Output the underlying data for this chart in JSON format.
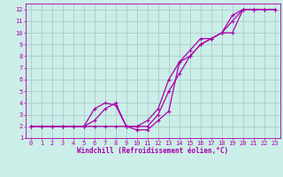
{
  "bg_color": "#cceee8",
  "grid_color": "#aacccc",
  "line_color": "#aa00aa",
  "xlim": [
    -0.5,
    23.5
  ],
  "ylim": [
    1,
    12.5
  ],
  "xticks": [
    0,
    1,
    2,
    3,
    4,
    5,
    6,
    7,
    8,
    9,
    10,
    11,
    12,
    13,
    14,
    15,
    16,
    17,
    18,
    19,
    20,
    21,
    22,
    23
  ],
  "yticks": [
    1,
    2,
    3,
    4,
    5,
    6,
    7,
    8,
    9,
    10,
    11,
    12
  ],
  "xlabel": "Windchill (Refroidissement éolien,°C)",
  "series1_x": [
    0,
    1,
    2,
    3,
    4,
    5,
    6,
    7,
    8,
    9,
    10,
    11,
    12,
    13,
    14,
    15,
    16,
    17,
    18,
    19,
    20,
    21,
    22,
    23
  ],
  "series1_y": [
    2,
    2,
    2,
    2,
    2,
    2,
    2,
    2,
    2,
    2,
    2,
    2,
    3,
    5,
    6.5,
    8,
    9,
    9.5,
    10,
    11.5,
    12,
    12,
    12,
    12
  ],
  "series2_x": [
    0,
    1,
    2,
    3,
    4,
    5,
    6,
    7,
    8,
    9,
    10,
    11,
    12,
    13,
    14,
    15,
    16,
    17,
    18,
    19,
    20,
    21,
    22,
    23
  ],
  "series2_y": [
    2,
    2,
    2,
    2,
    2,
    2,
    3.5,
    4,
    3.8,
    2,
    1.7,
    1.7,
    2.5,
    3.3,
    7.5,
    8.5,
    9.5,
    9.5,
    10,
    10,
    12,
    12,
    12,
    12
  ],
  "series3_x": [
    0,
    1,
    2,
    3,
    4,
    5,
    6,
    7,
    8,
    9,
    10,
    11,
    12,
    13,
    14,
    15,
    16,
    17,
    18,
    19,
    20,
    21,
    22,
    23
  ],
  "series3_y": [
    2,
    2,
    2,
    2,
    2,
    2,
    2.5,
    3.5,
    4,
    2,
    2,
    2.5,
    3.5,
    6,
    7.5,
    8,
    9,
    9.5,
    10,
    11,
    12,
    12,
    12,
    12
  ],
  "tick_fontsize": 5,
  "xlabel_fontsize": 5.5,
  "marker_size": 2.5,
  "line_width": 0.9
}
